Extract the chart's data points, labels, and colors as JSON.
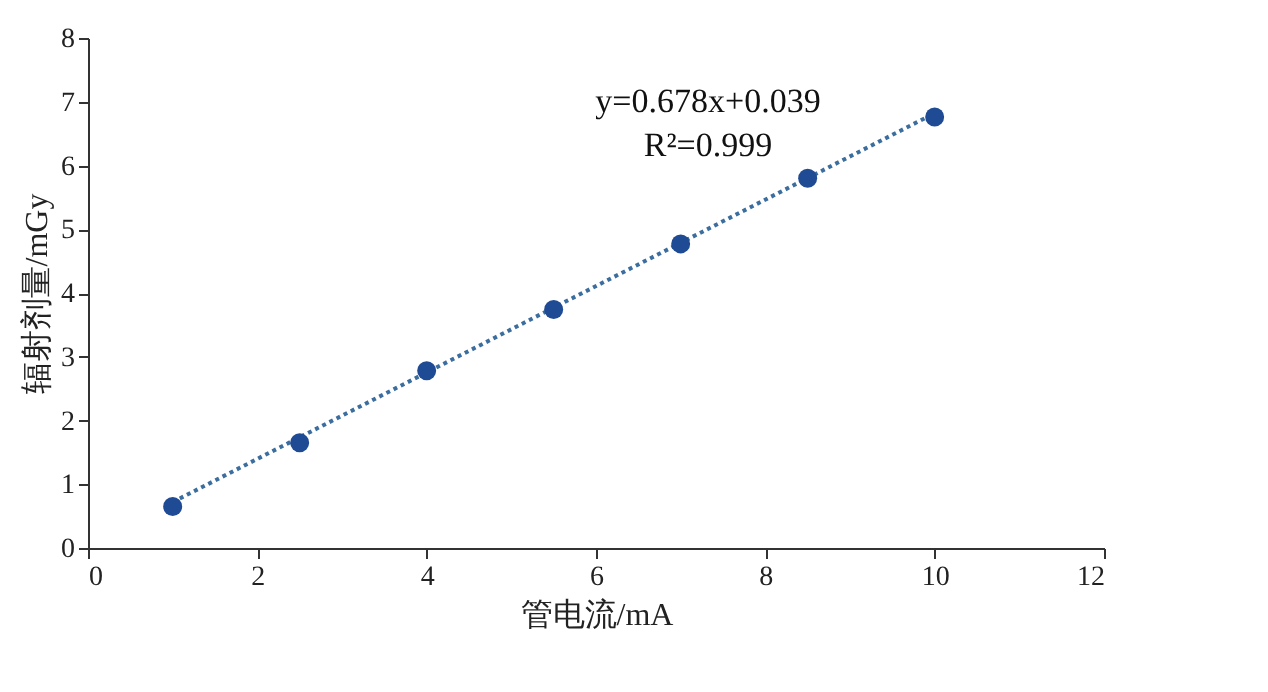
{
  "chart_data": {
    "type": "scatter",
    "xlabel": "管电流/mA",
    "ylabel": "辐射剂量/mGy",
    "xlim": [
      0,
      12
    ],
    "xticks": [
      0,
      2,
      4,
      6,
      8,
      10,
      12
    ],
    "ylim": [
      0,
      8
    ],
    "yticks": [
      0,
      1,
      2,
      3,
      4,
      5,
      6,
      7,
      8
    ],
    "grid": false,
    "series": [
      {
        "color": "#1f4a94",
        "marker": "circle",
        "x": [
          1,
          2.5,
          4,
          5.5,
          7,
          8.5,
          10
        ],
        "values": [
          0.65,
          1.65,
          2.78,
          3.74,
          4.77,
          5.8,
          6.76
        ]
      },
      {
        "type": "line",
        "color": "#3b6e9e",
        "line_style": "dotted",
        "x": [
          1,
          10
        ],
        "values": [
          0.72,
          6.82
        ]
      }
    ],
    "annotations": [
      "y=0.678x+0.039",
      "R²=0.999"
    ]
  }
}
